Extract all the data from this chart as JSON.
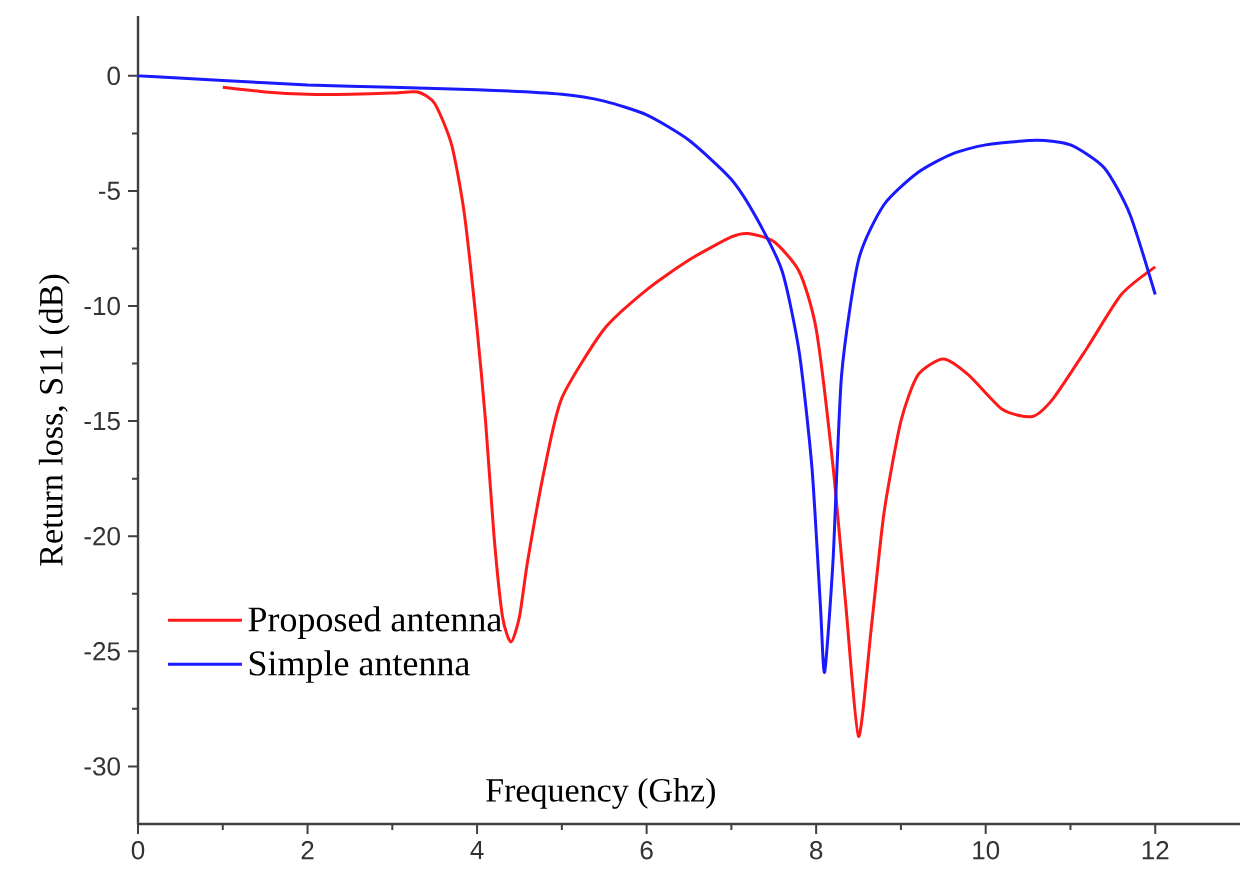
{
  "chart_data": {
    "type": "line",
    "xlabel": "Frequency (Ghz)",
    "ylabel": "Return loss, S11 (dB)",
    "xlim": [
      0,
      13
    ],
    "ylim": [
      -32.5,
      2.6
    ],
    "xticks": [
      0,
      2,
      4,
      6,
      8,
      10,
      12
    ],
    "yticks": [
      -30,
      -25,
      -20,
      -15,
      -10,
      -5,
      0
    ],
    "legend": "bottom left",
    "series": [
      {
        "name": "Proposed antenna",
        "color": "#ff1a1a",
        "x": [
          1,
          1.5,
          2,
          2.5,
          3,
          3.3,
          3.5,
          3.7,
          3.85,
          4.0,
          4.1,
          4.2,
          4.3,
          4.4,
          4.5,
          4.6,
          4.8,
          5.0,
          5.5,
          6.0,
          6.5,
          7.0,
          7.2,
          7.5,
          7.8,
          8.0,
          8.2,
          8.35,
          8.5,
          8.65,
          8.8,
          9.0,
          9.2,
          9.5,
          9.8,
          10.2,
          10.55,
          10.8,
          11.2,
          11.6,
          12.0
        ],
        "values": [
          -0.5,
          -0.7,
          -0.8,
          -0.8,
          -0.75,
          -0.7,
          -1.2,
          -3,
          -6,
          -11,
          -15,
          -20,
          -23.5,
          -24.6,
          -23.5,
          -21,
          -17,
          -14,
          -11,
          -9.3,
          -8,
          -7.0,
          -6.85,
          -7.2,
          -8.5,
          -11,
          -17,
          -23,
          -28.7,
          -24,
          -19,
          -15,
          -13,
          -12.3,
          -13,
          -14.5,
          -14.8,
          -14,
          -11.8,
          -9.5,
          -8.3
        ]
      },
      {
        "name": "Simple antenna",
        "color": "#1a1aff",
        "x": [
          0,
          1,
          2,
          3,
          4,
          5,
          5.5,
          6,
          6.5,
          7.0,
          7.3,
          7.6,
          7.8,
          7.95,
          8.05,
          8.1,
          8.2,
          8.3,
          8.5,
          8.8,
          9.2,
          9.6,
          10.0,
          10.6,
          11.0,
          11.4,
          11.7,
          12.0
        ],
        "values": [
          0,
          -0.2,
          -0.4,
          -0.5,
          -0.6,
          -0.8,
          -1.1,
          -1.7,
          -2.8,
          -4.5,
          -6.2,
          -8.5,
          -12,
          -17,
          -23,
          -25.9,
          -21,
          -13,
          -8,
          -5.6,
          -4.2,
          -3.4,
          -3.0,
          -2.8,
          -3.0,
          -4.0,
          -6,
          -9.5
        ]
      }
    ]
  }
}
